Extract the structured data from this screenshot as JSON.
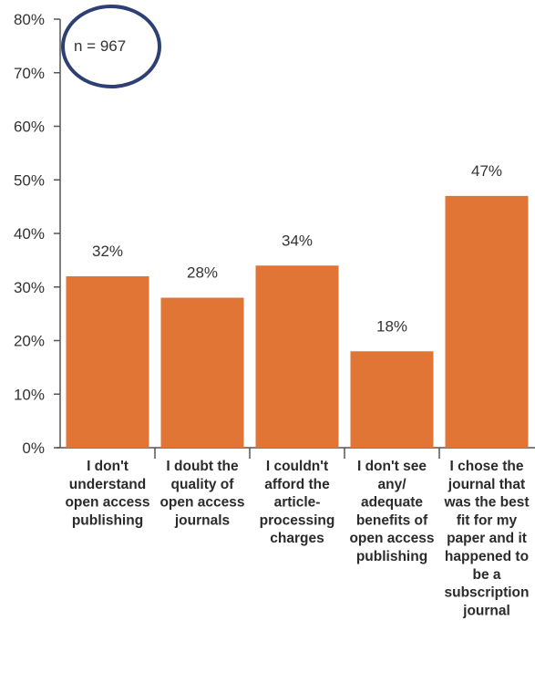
{
  "chart_data": {
    "type": "bar",
    "categories": [
      [
        "I don't",
        "understand",
        "open access",
        "publishing"
      ],
      [
        "I doubt the",
        "quality of",
        "open access",
        "journals"
      ],
      [
        "I couldn't",
        "afford the",
        "article-",
        "processing",
        "charges"
      ],
      [
        "I don't see",
        "any/",
        "adequate",
        "benefits of",
        "open access",
        "publishing"
      ],
      [
        "I chose the",
        "journal that",
        "was the best",
        "fit for my",
        "paper and it",
        "happened to",
        "be a",
        "subscription",
        "journal"
      ]
    ],
    "values": [
      32,
      28,
      34,
      18,
      47
    ],
    "data_labels": [
      "32%",
      "28%",
      "34%",
      "18%",
      "47%"
    ],
    "yticks": [
      "0%",
      "10%",
      "20%",
      "30%",
      "40%",
      "50%",
      "60%",
      "70%",
      "80%"
    ],
    "ylim": [
      0,
      80
    ],
    "annotation": "n = 967",
    "bar_color": "#e07535",
    "annotation_circle_color": "#2d3f73"
  }
}
